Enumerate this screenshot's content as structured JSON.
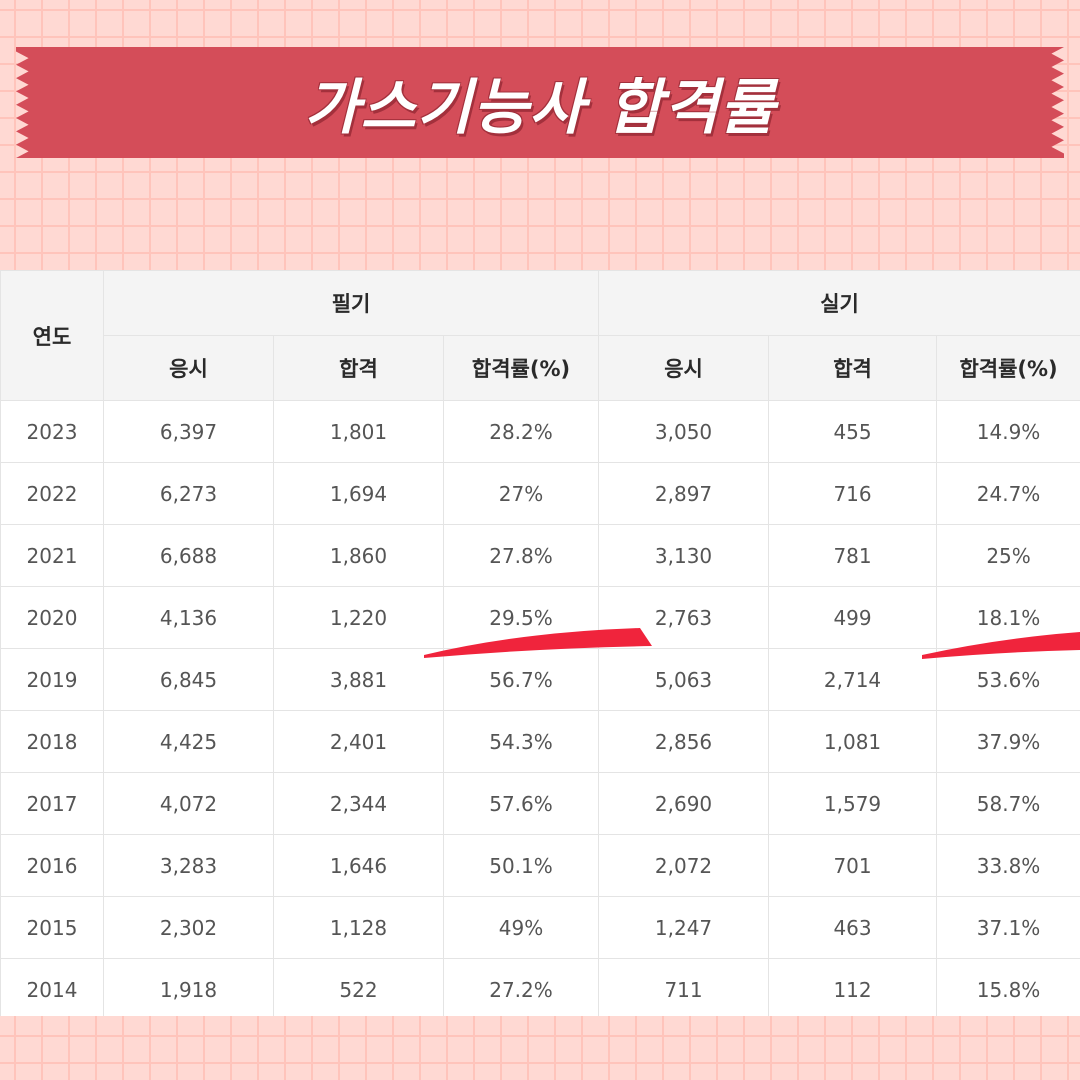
{
  "banner": {
    "title": "가스기능사 합격률"
  },
  "table": {
    "year_header": "연도",
    "group_headers": [
      "필기",
      "실기"
    ],
    "sub_headers": [
      "응시",
      "합격",
      "합격률(%)",
      "응시",
      "합격",
      "합격률(%)"
    ],
    "rows": [
      [
        "2023",
        "6,397",
        "1,801",
        "28.2%",
        "3,050",
        "455",
        "14.9%"
      ],
      [
        "2022",
        "6,273",
        "1,694",
        "27%",
        "2,897",
        "716",
        "24.7%"
      ],
      [
        "2021",
        "6,688",
        "1,860",
        "27.8%",
        "3,130",
        "781",
        "25%"
      ],
      [
        "2020",
        "4,136",
        "1,220",
        "29.5%",
        "2,763",
        "499",
        "18.1%"
      ],
      [
        "2019",
        "6,845",
        "3,881",
        "56.7%",
        "5,063",
        "2,714",
        "53.6%"
      ],
      [
        "2018",
        "4,425",
        "2,401",
        "54.3%",
        "2,856",
        "1,081",
        "37.9%"
      ],
      [
        "2017",
        "4,072",
        "2,344",
        "57.6%",
        "2,690",
        "1,579",
        "58.7%"
      ],
      [
        "2016",
        "3,283",
        "1,646",
        "50.1%",
        "2,072",
        "701",
        "33.8%"
      ],
      [
        "2015",
        "2,302",
        "1,128",
        "49%",
        "1,247",
        "463",
        "37.1%"
      ],
      [
        "2014",
        "1,918",
        "522",
        "27.2%",
        "711",
        "112",
        "15.8%"
      ]
    ]
  },
  "colors": {
    "banner": "#d44d59",
    "background": "#ffd9d3",
    "grid_line": "#ffc4bb",
    "highlight_stroke": "#f0243c"
  }
}
